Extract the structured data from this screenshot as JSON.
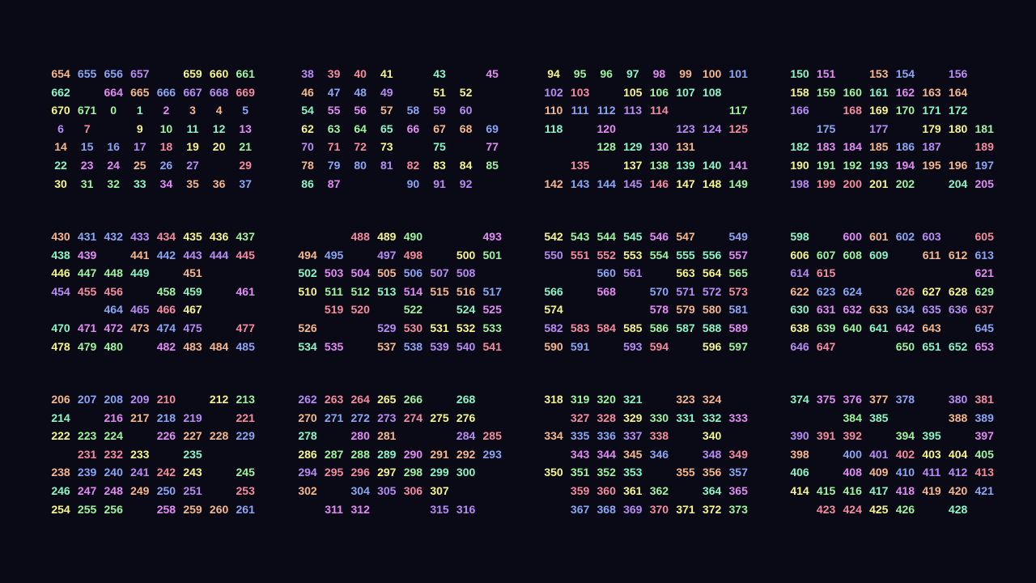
{
  "palette": [
    "#9ff59f",
    "#f7f58b",
    "#f58b9f",
    "#b98bf5",
    "#8ba6f5",
    "#f5b78b",
    "#e38bf5",
    "#8bf5c4"
  ],
  "blocks": [
    {
      "rows": [
        [
          "654",
          "655",
          "656",
          "657",
          "",
          "659",
          "660",
          "661"
        ],
        [
          "662",
          "",
          "664",
          "665",
          "666",
          "667",
          "668",
          "669"
        ],
        [
          "670",
          "671",
          "0",
          "1",
          "2",
          "3",
          "4",
          "5"
        ],
        [
          "6",
          "7",
          "",
          "9",
          "10",
          "11",
          "12",
          "13"
        ],
        [
          "14",
          "15",
          "16",
          "17",
          "18",
          "19",
          "20",
          "21"
        ],
        [
          "22",
          "23",
          "24",
          "25",
          "26",
          "27",
          "",
          "29"
        ],
        [
          "30",
          "31",
          "32",
          "33",
          "34",
          "35",
          "36",
          "37"
        ]
      ]
    },
    {
      "rows": [
        [
          "38",
          "39",
          "40",
          "41",
          "",
          "43",
          "",
          "45"
        ],
        [
          "46",
          "47",
          "48",
          "49",
          "",
          "51",
          "52",
          ""
        ],
        [
          "54",
          "55",
          "56",
          "57",
          "58",
          "59",
          "60",
          ""
        ],
        [
          "62",
          "63",
          "64",
          "65",
          "66",
          "67",
          "68",
          "69"
        ],
        [
          "70",
          "71",
          "72",
          "73",
          "",
          "75",
          "",
          "77"
        ],
        [
          "78",
          "79",
          "80",
          "81",
          "82",
          "83",
          "84",
          "85"
        ],
        [
          "86",
          "87",
          "",
          "",
          "90",
          "91",
          "92",
          ""
        ]
      ]
    },
    {
      "rows": [
        [
          "94",
          "95",
          "96",
          "97",
          "98",
          "99",
          "100",
          "101"
        ],
        [
          "102",
          "103",
          "",
          "105",
          "106",
          "107",
          "108",
          ""
        ],
        [
          "110",
          "111",
          "112",
          "113",
          "114",
          "",
          "",
          "117"
        ],
        [
          "118",
          "",
          "120",
          "",
          "",
          "123",
          "124",
          "125"
        ],
        [
          "",
          "",
          "128",
          "129",
          "130",
          "131",
          "",
          ""
        ],
        [
          "",
          "135",
          "",
          "137",
          "138",
          "139",
          "140",
          "141"
        ],
        [
          "142",
          "143",
          "144",
          "145",
          "146",
          "147",
          "148",
          "149"
        ]
      ]
    },
    {
      "rows": [
        [
          "150",
          "151",
          "",
          "153",
          "154",
          "",
          "156",
          ""
        ],
        [
          "158",
          "159",
          "160",
          "161",
          "162",
          "163",
          "164",
          ""
        ],
        [
          "166",
          "",
          "168",
          "169",
          "170",
          "171",
          "172",
          ""
        ],
        [
          "",
          "175",
          "",
          "177",
          "",
          "179",
          "180",
          "181"
        ],
        [
          "182",
          "183",
          "184",
          "185",
          "186",
          "187",
          "",
          "189"
        ],
        [
          "190",
          "191",
          "192",
          "193",
          "194",
          "195",
          "196",
          "197"
        ],
        [
          "198",
          "199",
          "200",
          "201",
          "202",
          "",
          "204",
          "205"
        ]
      ]
    },
    {
      "rows": [
        [
          "430",
          "431",
          "432",
          "433",
          "434",
          "435",
          "436",
          "437"
        ],
        [
          "438",
          "439",
          "",
          "441",
          "442",
          "443",
          "444",
          "445"
        ],
        [
          "446",
          "447",
          "448",
          "449",
          "",
          "451",
          "",
          ""
        ],
        [
          "454",
          "455",
          "456",
          "",
          "458",
          "459",
          "",
          "461"
        ],
        [
          "",
          "",
          "464",
          "465",
          "466",
          "467",
          "",
          ""
        ],
        [
          "470",
          "471",
          "472",
          "473",
          "474",
          "475",
          "",
          "477"
        ],
        [
          "478",
          "479",
          "480",
          "",
          "482",
          "483",
          "484",
          "485"
        ]
      ]
    },
    {
      "rows": [
        [
          "",
          "",
          "488",
          "489",
          "490",
          "",
          "",
          "493"
        ],
        [
          "494",
          "495",
          "",
          "497",
          "498",
          "",
          "500",
          "501"
        ],
        [
          "502",
          "503",
          "504",
          "505",
          "506",
          "507",
          "508",
          ""
        ],
        [
          "510",
          "511",
          "512",
          "513",
          "514",
          "515",
          "516",
          "517"
        ],
        [
          "",
          "519",
          "520",
          "",
          "522",
          "",
          "524",
          "525"
        ],
        [
          "526",
          "",
          "",
          "529",
          "530",
          "531",
          "532",
          "533"
        ],
        [
          "534",
          "535",
          "",
          "537",
          "538",
          "539",
          "540",
          "541"
        ]
      ]
    },
    {
      "rows": [
        [
          "542",
          "543",
          "544",
          "545",
          "546",
          "547",
          "",
          "549"
        ],
        [
          "550",
          "551",
          "552",
          "553",
          "554",
          "555",
          "556",
          "557"
        ],
        [
          "",
          "",
          "560",
          "561",
          "",
          "563",
          "564",
          "565"
        ],
        [
          "566",
          "",
          "568",
          "",
          "570",
          "571",
          "572",
          "573"
        ],
        [
          "574",
          "",
          "",
          "",
          "578",
          "579",
          "580",
          "581"
        ],
        [
          "582",
          "583",
          "584",
          "585",
          "586",
          "587",
          "588",
          "589"
        ],
        [
          "590",
          "591",
          "",
          "593",
          "594",
          "",
          "596",
          "597"
        ]
      ]
    },
    {
      "rows": [
        [
          "598",
          "",
          "600",
          "601",
          "602",
          "603",
          "",
          "605"
        ],
        [
          "606",
          "607",
          "608",
          "609",
          "",
          "611",
          "612",
          "613"
        ],
        [
          "614",
          "615",
          "",
          "",
          "",
          "",
          "",
          "621"
        ],
        [
          "622",
          "623",
          "624",
          "",
          "626",
          "627",
          "628",
          "629"
        ],
        [
          "630",
          "631",
          "632",
          "633",
          "634",
          "635",
          "636",
          "637"
        ],
        [
          "638",
          "639",
          "640",
          "641",
          "642",
          "643",
          "",
          "645"
        ],
        [
          "646",
          "647",
          "",
          "",
          "650",
          "651",
          "652",
          "653"
        ]
      ]
    },
    {
      "rows": [
        [
          "206",
          "207",
          "208",
          "209",
          "210",
          "",
          "212",
          "213"
        ],
        [
          "214",
          "",
          "216",
          "217",
          "218",
          "219",
          "",
          "221"
        ],
        [
          "222",
          "223",
          "224",
          "",
          "226",
          "227",
          "228",
          "229"
        ],
        [
          "",
          "231",
          "232",
          "233",
          "",
          "235",
          "",
          ""
        ],
        [
          "238",
          "239",
          "240",
          "241",
          "242",
          "243",
          "",
          "245"
        ],
        [
          "246",
          "247",
          "248",
          "249",
          "250",
          "251",
          "",
          "253"
        ],
        [
          "254",
          "255",
          "256",
          "",
          "258",
          "259",
          "260",
          "261"
        ]
      ]
    },
    {
      "rows": [
        [
          "262",
          "263",
          "264",
          "265",
          "266",
          "",
          "268",
          ""
        ],
        [
          "270",
          "271",
          "272",
          "273",
          "274",
          "275",
          "276",
          ""
        ],
        [
          "278",
          "",
          "280",
          "281",
          "",
          "",
          "284",
          "285"
        ],
        [
          "286",
          "287",
          "288",
          "289",
          "290",
          "291",
          "292",
          "293"
        ],
        [
          "294",
          "295",
          "296",
          "297",
          "298",
          "299",
          "300",
          ""
        ],
        [
          "302",
          "",
          "304",
          "305",
          "306",
          "307",
          "",
          ""
        ],
        [
          "",
          "311",
          "312",
          "",
          "",
          "315",
          "316",
          ""
        ]
      ]
    },
    {
      "rows": [
        [
          "318",
          "319",
          "320",
          "321",
          "",
          "323",
          "324",
          ""
        ],
        [
          "",
          "327",
          "328",
          "329",
          "330",
          "331",
          "332",
          "333"
        ],
        [
          "334",
          "335",
          "336",
          "337",
          "338",
          "",
          "340",
          ""
        ],
        [
          "",
          "343",
          "344",
          "345",
          "346",
          "",
          "348",
          "349"
        ],
        [
          "350",
          "351",
          "352",
          "353",
          "",
          "355",
          "356",
          "357"
        ],
        [
          "",
          "359",
          "360",
          "361",
          "362",
          "",
          "364",
          "365"
        ],
        [
          "",
          "367",
          "368",
          "369",
          "370",
          "371",
          "372",
          "373"
        ]
      ]
    },
    {
      "rows": [
        [
          "374",
          "375",
          "376",
          "377",
          "378",
          "",
          "380",
          "381"
        ],
        [
          "",
          "",
          "384",
          "385",
          "",
          "",
          "388",
          "389"
        ],
        [
          "390",
          "391",
          "392",
          "",
          "394",
          "395",
          "",
          "397"
        ],
        [
          "398",
          "",
          "400",
          "401",
          "402",
          "403",
          "404",
          "405"
        ],
        [
          "406",
          "",
          "408",
          "409",
          "410",
          "411",
          "412",
          "413"
        ],
        [
          "414",
          "415",
          "416",
          "417",
          "418",
          "419",
          "420",
          "421"
        ],
        [
          "",
          "423",
          "424",
          "425",
          "426",
          "",
          "428",
          ""
        ]
      ]
    }
  ]
}
